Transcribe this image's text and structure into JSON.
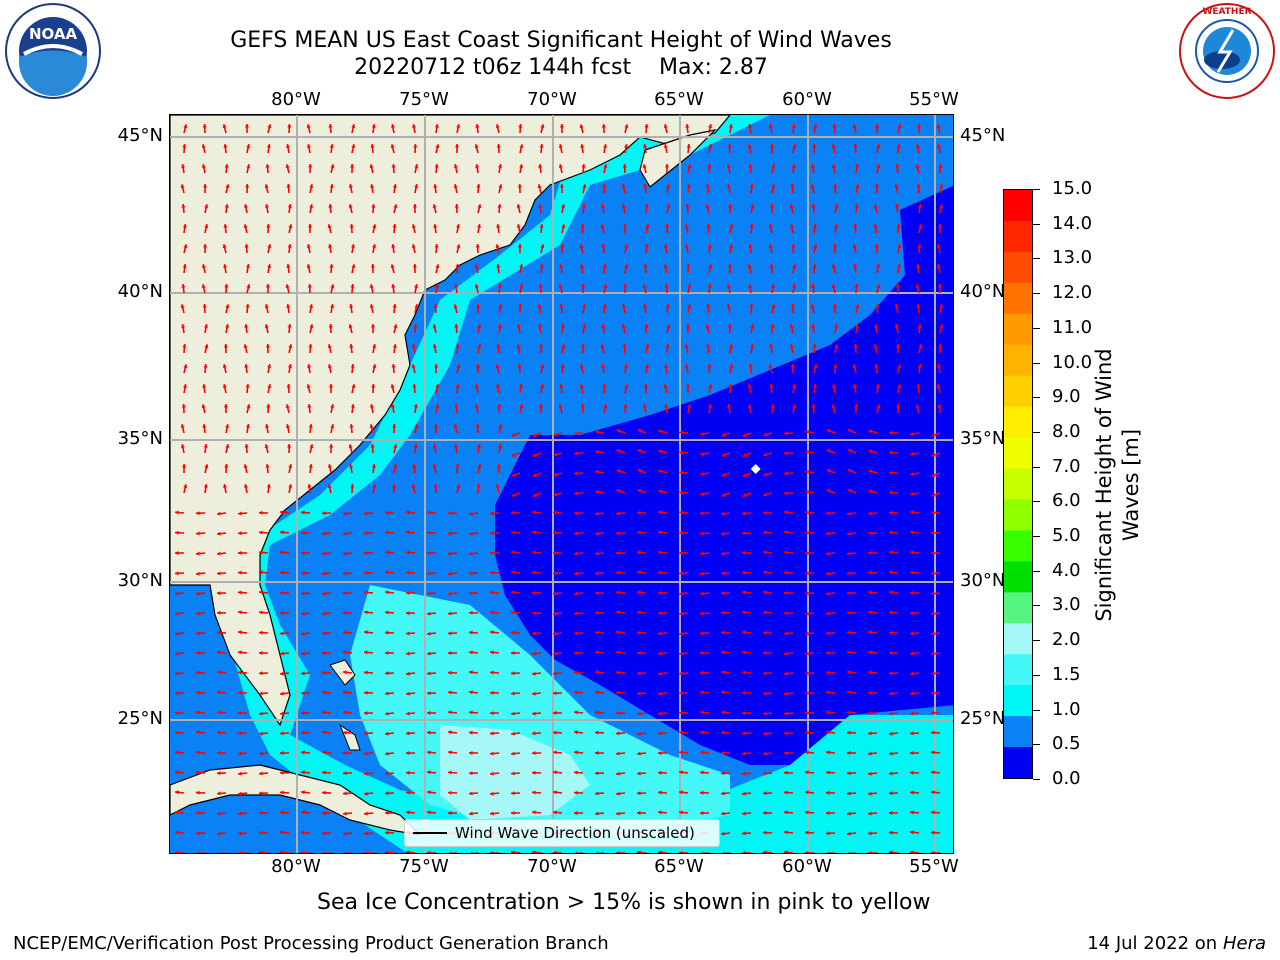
{
  "header": {
    "title_line1": "GEFS MEAN US East Coast Significant Height of Wind Waves",
    "title_line2": "20220712 t06z 144h fcst    Max: 2.87"
  },
  "logos": {
    "left": "NOAA",
    "left_ring": "NATIONAL OCEANIC AND ATMOSPHERIC ADMINISTRATION · U.S. DEPARTMENT OF COMMERCE",
    "right_ring": "NATIONAL WEATHER SERVICE"
  },
  "map": {
    "lon_ticks": [
      "80°W",
      "75°W",
      "70°W",
      "65°W",
      "60°W",
      "55°W"
    ],
    "lat_ticks": [
      "45°N",
      "40°N",
      "35°N",
      "30°N",
      "25°N"
    ],
    "legend_label": "Wind Wave Direction (unscaled)",
    "colors": {
      "land": "#eeeedc",
      "band_0_0_5": "#0000f5",
      "band_0_5_1_0": "#0a82f5",
      "band_1_0_1_5": "#00f5f5",
      "band_1_5_2_0": "#44f8f8",
      "band_2_0_3_0": "#a6f8f8",
      "arrow": "#ff0000",
      "grid": "#b0b0b0"
    }
  },
  "colorbar": {
    "label": "Significant Height of Wind Waves [m]",
    "ticks": [
      "15.0",
      "14.0",
      "13.0",
      "12.0",
      "11.0",
      "10.0",
      "9.0",
      "8.0",
      "7.0",
      "6.0",
      "5.0",
      "4.0",
      "3.0",
      "2.0",
      "1.5",
      "1.0",
      "0.5",
      "0.0"
    ],
    "colors": [
      "#ff0000",
      "#ff2600",
      "#ff4c00",
      "#ff7200",
      "#ff9900",
      "#ffb300",
      "#ffd000",
      "#ffee00",
      "#f0ff00",
      "#c8ff00",
      "#90ff00",
      "#38ff00",
      "#00e000",
      "#55f580",
      "#a6f8f8",
      "#44f8f8",
      "#00f5f5",
      "#0a82f5",
      "#0000f5"
    ]
  },
  "footer": {
    "note": "Sea Ice Concentration > 15% is shown in pink to yellow",
    "credit": "NCEP/EMC/Verification Post Processing Product Generation Branch",
    "date": "14 Jul 2022 on ",
    "machine": "Hera"
  }
}
